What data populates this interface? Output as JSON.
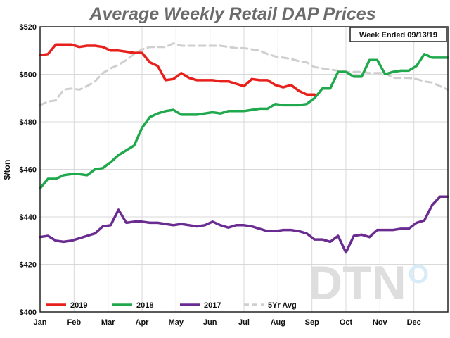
{
  "chart_data": {
    "type": "line",
    "title": "Average Weekly Retail DAP Prices",
    "ylabel": "$/ton",
    "note": "Week Ended 09/13/19",
    "logo": "DTN",
    "ylim": [
      400,
      520
    ],
    "yticks": [
      400,
      420,
      440,
      460,
      480,
      500,
      520
    ],
    "ytick_labels": [
      "$400",
      "$420",
      "$440",
      "$460",
      "$480",
      "$500",
      "$520"
    ],
    "xlim": [
      0,
      52
    ],
    "months": [
      "Jan",
      "Feb",
      "Mar",
      "Apr",
      "May",
      "Jun",
      "Jul",
      "Aug",
      "Sep",
      "Oct",
      "Nov",
      "Dec"
    ],
    "month_pos": [
      0,
      4.33,
      8.67,
      13,
      17.33,
      21.67,
      26,
      30.33,
      34.67,
      39,
      43.33,
      47.67
    ],
    "grid": true,
    "legend_position": "bottom-left",
    "series": [
      {
        "name": "2019",
        "color": "#e8201b",
        "dashed": false,
        "x": [
          0,
          1,
          2,
          3,
          4,
          5,
          6,
          7,
          8,
          9,
          10,
          11,
          12,
          13,
          14,
          15,
          16,
          17,
          18,
          19,
          20,
          21,
          22,
          23,
          24,
          25,
          26,
          27,
          28,
          29,
          30,
          31,
          32,
          33,
          34,
          35
        ],
        "values": [
          508,
          508.5,
          512.5,
          512.5,
          512.5,
          511.5,
          512,
          512,
          511.5,
          510,
          510,
          509.5,
          509,
          509,
          505,
          503.5,
          497.5,
          498,
          500.5,
          498.5,
          497.5,
          497.5,
          497.5,
          497,
          497,
          496,
          495,
          498,
          497.5,
          497.5,
          495.5,
          494.5,
          495.5,
          493,
          491.5,
          491.5
        ]
      },
      {
        "name": "2018",
        "color": "#20a84d",
        "dashed": false,
        "x": [
          0,
          1,
          2,
          3,
          4,
          5,
          6,
          7,
          8,
          9,
          10,
          11,
          12,
          13,
          14,
          15,
          16,
          17,
          18,
          19,
          20,
          21,
          22,
          23,
          24,
          25,
          26,
          27,
          28,
          29,
          30,
          31,
          32,
          33,
          34,
          35,
          36,
          37,
          38,
          39,
          40,
          41,
          42,
          43,
          44,
          45,
          46,
          47,
          48,
          49,
          50,
          51,
          52
        ],
        "values": [
          452,
          456,
          456,
          457.5,
          458,
          458,
          457.5,
          460,
          460.5,
          463,
          466,
          468,
          470,
          477.5,
          482,
          483.5,
          484.5,
          485,
          483,
          483,
          483,
          483.5,
          484,
          483.5,
          484.5,
          484.5,
          484.5,
          485,
          485.5,
          485.5,
          487.5,
          487,
          487,
          487,
          487.5,
          490,
          494,
          494,
          501,
          501,
          499,
          499,
          506,
          506,
          500,
          501,
          501.5,
          501.5,
          503.5,
          508.5,
          507,
          507,
          507
        ]
      },
      {
        "name": "2017",
        "color": "#6a2c91",
        "dashed": false,
        "x": [
          0,
          1,
          2,
          3,
          4,
          5,
          6,
          7,
          8,
          9,
          10,
          11,
          12,
          13,
          14,
          15,
          16,
          17,
          18,
          19,
          20,
          21,
          22,
          23,
          24,
          25,
          26,
          27,
          28,
          29,
          30,
          31,
          32,
          33,
          34,
          35,
          36,
          37,
          38,
          39,
          40,
          41,
          42,
          43,
          44,
          45,
          46,
          47,
          48,
          49,
          50,
          51,
          52
        ],
        "values": [
          431.5,
          432,
          430,
          429.5,
          430,
          431,
          432,
          433,
          436,
          436.5,
          443,
          437.5,
          438,
          438,
          437.5,
          437.5,
          437,
          436.5,
          437,
          436.5,
          436,
          436.5,
          438,
          436.5,
          435.5,
          436.5,
          436.5,
          436,
          435,
          434,
          434,
          434.5,
          434.5,
          434,
          433,
          430.5,
          430.5,
          429.5,
          432,
          425,
          432,
          432.5,
          431.5,
          434.5,
          434.5,
          434.5,
          435,
          435,
          437.5,
          438.5,
          445,
          448.5,
          448.5
        ]
      },
      {
        "name": "5Yr Avg",
        "color": "#cfcfcf",
        "dashed": true,
        "x": [
          0,
          1,
          2,
          3,
          4,
          5,
          6,
          7,
          8,
          9,
          10,
          11,
          12,
          13,
          14,
          15,
          16,
          17,
          18,
          19,
          20,
          21,
          22,
          23,
          24,
          25,
          26,
          27,
          28,
          29,
          30,
          31,
          32,
          33,
          34,
          35,
          36,
          37,
          38,
          39,
          40,
          41,
          42,
          43,
          44,
          45,
          46,
          47,
          48,
          49,
          50,
          51,
          52
        ],
        "values": [
          487,
          488.5,
          489,
          493.5,
          494,
          493.5,
          495,
          497,
          500.5,
          502.5,
          504,
          506,
          508.5,
          510.5,
          511.5,
          511.5,
          511.5,
          513,
          512,
          512,
          512,
          512,
          512,
          512,
          511.5,
          511,
          511,
          510.5,
          510,
          508.5,
          507.5,
          507,
          506.5,
          505.5,
          505,
          503,
          502.5,
          502,
          501.5,
          501,
          501,
          501,
          500.5,
          500.5,
          500.5,
          498.5,
          498.5,
          498.5,
          498,
          497,
          496.5,
          495,
          493.5
        ]
      }
    ]
  }
}
